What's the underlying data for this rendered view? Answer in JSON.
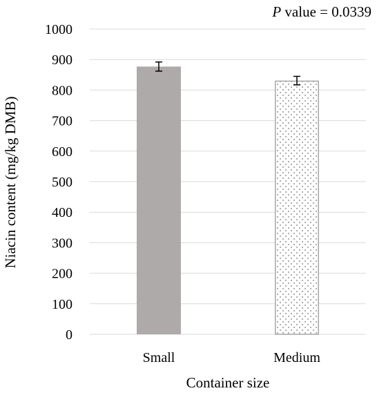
{
  "chart_data": {
    "type": "bar",
    "title": "",
    "annotation": {
      "prefix": "P",
      "text": " value = 0.0339"
    },
    "xlabel": "Container size",
    "ylabel": "Niacin content (mg/kg DMB)",
    "ylim": [
      0,
      1000
    ],
    "yticks": [
      "0",
      "100",
      "200",
      "300",
      "400",
      "500",
      "600",
      "700",
      "800",
      "900",
      "1000"
    ],
    "grid": true,
    "categories": [
      "Small",
      "Medium"
    ],
    "values": [
      877,
      831
    ],
    "errors": [
      15,
      14
    ],
    "colors": {
      "small_fill": "#aeaaaa",
      "medium_dots": "#a6a6a6",
      "medium_border": "#a6a6a6",
      "grid": "#d9d9d9"
    }
  }
}
